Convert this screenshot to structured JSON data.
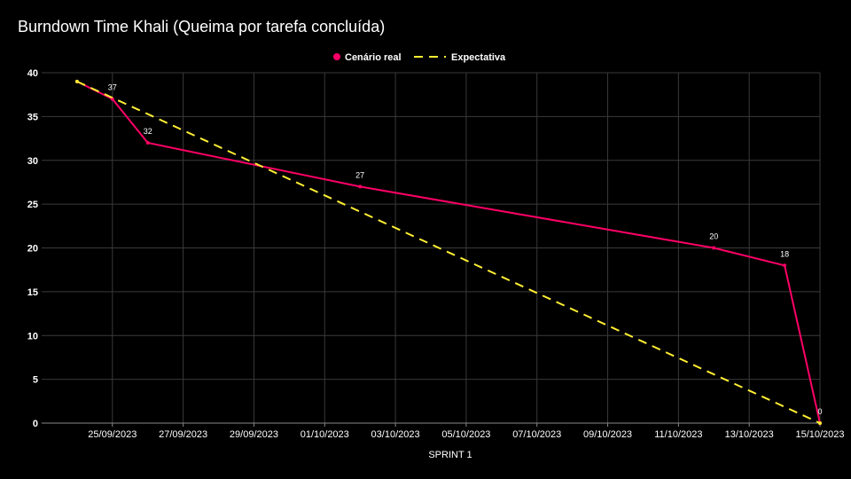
{
  "chart_data": {
    "type": "line",
    "title": "Burndown Time Khali (Queima por tarefa concluída)",
    "xlabel": "SPRINT 1",
    "ylabel": "",
    "ylim": [
      0,
      40
    ],
    "yticks": [
      0,
      5,
      10,
      15,
      20,
      25,
      30,
      35,
      40
    ],
    "xlim": [
      "23/09/2023",
      "15/10/2023"
    ],
    "xticks": [
      "25/09/2023",
      "27/09/2023",
      "29/09/2023",
      "01/10/2023",
      "03/10/2023",
      "05/10/2023",
      "07/10/2023",
      "09/10/2023",
      "11/10/2023",
      "13/10/2023",
      "15/10/2023"
    ],
    "grid": true,
    "legend_position": "top-center",
    "series": [
      {
        "name": "Cenário real",
        "color": "#ff0066",
        "style": "solid",
        "points": [
          {
            "x": "24/09/2023",
            "y": 39
          },
          {
            "x": "25/09/2023",
            "y": 37,
            "label": "37"
          },
          {
            "x": "26/09/2023",
            "y": 32,
            "label": "32"
          },
          {
            "x": "02/10/2023",
            "y": 27,
            "label": "27"
          },
          {
            "x": "12/10/2023",
            "y": 20,
            "label": "20"
          },
          {
            "x": "14/10/2023",
            "y": 18,
            "label": "18"
          },
          {
            "x": "15/10/2023",
            "y": 0,
            "label": "0"
          }
        ]
      },
      {
        "name": "Expectativa",
        "color": "#ffee33",
        "style": "dashed",
        "points": [
          {
            "x": "24/09/2023",
            "y": 39
          },
          {
            "x": "15/10/2023",
            "y": 0
          }
        ]
      }
    ]
  }
}
